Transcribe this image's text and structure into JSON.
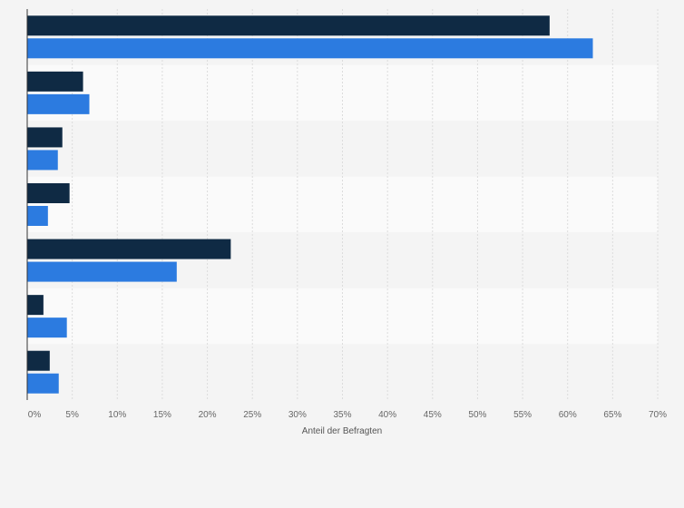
{
  "chart_data": {
    "type": "bar",
    "orientation": "horizontal",
    "categories": [
      "",
      "",
      "",
      "",
      "",
      "",
      ""
    ],
    "series": [
      {
        "color": "#0f2a44",
        "values": [
          58.0,
          6.2,
          3.9,
          4.7,
          22.6,
          1.8,
          2.5
        ]
      },
      {
        "color": "#2c7be0",
        "values": [
          62.8,
          6.9,
          3.4,
          2.3,
          16.6,
          4.4,
          3.5
        ]
      }
    ],
    "xlabel": "Anteil der Befragten",
    "xlim": [
      0,
      70
    ],
    "ticks": [
      "0%",
      "5%",
      "10%",
      "15%",
      "20%",
      "25%",
      "30%",
      "35%",
      "40%",
      "45%",
      "50%",
      "55%",
      "60%",
      "65%",
      "70%"
    ],
    "grid": true,
    "legend": "none"
  }
}
